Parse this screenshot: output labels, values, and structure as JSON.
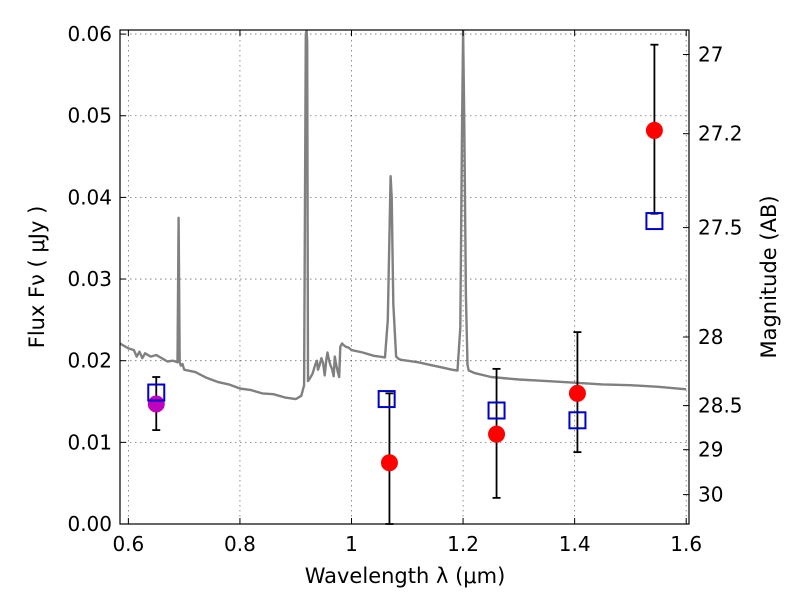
{
  "chart_data": {
    "type": "scatter",
    "xlabel": "Wavelength  λ (μm)",
    "ylabel_left": "Flux  Fν  ( μJy )",
    "ylabel_right": "Magnitude (AB)",
    "xlim": [
      0.585,
      1.605
    ],
    "ylim": [
      0.0,
      0.0605
    ],
    "x_ticks": [
      "0.6",
      "0.8",
      "1",
      "1.2",
      "1.4",
      "1.6"
    ],
    "x_tick_values": [
      0.6,
      0.8,
      1.0,
      1.2,
      1.4,
      1.6
    ],
    "y_ticks": [
      "0.00",
      "0.01",
      "0.02",
      "0.03",
      "0.04",
      "0.05",
      "0.06"
    ],
    "y_tick_values": [
      0.0,
      0.01,
      0.02,
      0.03,
      0.04,
      0.05,
      0.06
    ],
    "right_ticks": [
      {
        "label": "27",
        "flux": 0.0575
      },
      {
        "label": "27.2",
        "flux": 0.0478
      },
      {
        "label": "27.5",
        "flux": 0.0363
      },
      {
        "label": "28",
        "flux": 0.0229
      },
      {
        "label": "28.5",
        "flux": 0.0145
      },
      {
        "label": "29",
        "flux": 0.0091
      },
      {
        "label": "30",
        "flux": 0.0036
      }
    ],
    "grid": true,
    "spectrum": {
      "color": "#808080",
      "x": [
        0.585,
        0.6,
        0.61,
        0.615,
        0.62,
        0.625,
        0.63,
        0.64,
        0.65,
        0.66,
        0.67,
        0.68,
        0.688,
        0.69,
        0.692,
        0.694,
        0.697,
        0.7,
        0.72,
        0.74,
        0.76,
        0.78,
        0.8,
        0.82,
        0.84,
        0.86,
        0.88,
        0.9,
        0.91,
        0.915,
        0.918,
        0.9195,
        0.9205,
        0.922,
        0.925,
        0.93,
        0.935,
        0.938,
        0.94,
        0.943,
        0.946,
        0.949,
        0.952,
        0.955,
        0.957,
        0.959,
        0.962,
        0.965,
        0.968,
        0.97,
        0.972,
        0.975,
        0.978,
        0.98,
        0.983,
        0.986,
        0.99,
        0.995,
        1.0,
        1.02,
        1.04,
        1.06,
        1.065,
        1.07,
        1.072,
        1.075,
        1.08,
        1.085,
        1.09,
        1.1,
        1.12,
        1.14,
        1.16,
        1.18,
        1.19,
        1.195,
        1.198,
        1.2,
        1.202,
        1.205,
        1.208,
        1.21,
        1.22,
        1.25,
        1.3,
        1.35,
        1.4,
        1.45,
        1.5,
        1.55,
        1.6
      ],
      "y": [
        0.0221,
        0.0215,
        0.0213,
        0.0205,
        0.0211,
        0.0203,
        0.0209,
        0.0205,
        0.0207,
        0.0203,
        0.0199,
        0.02,
        0.0198,
        0.0375,
        0.0198,
        0.0194,
        0.0196,
        0.0189,
        0.0186,
        0.0179,
        0.0174,
        0.0171,
        0.0166,
        0.0164,
        0.016,
        0.0159,
        0.0155,
        0.0153,
        0.0157,
        0.017,
        0.06,
        0.0605,
        0.059,
        0.0175,
        0.0178,
        0.0184,
        0.0195,
        0.02,
        0.0189,
        0.0195,
        0.0203,
        0.0197,
        0.0182,
        0.0202,
        0.021,
        0.0203,
        0.0195,
        0.019,
        0.0181,
        0.0205,
        0.0197,
        0.0187,
        0.018,
        0.0217,
        0.0221,
        0.0219,
        0.0217,
        0.0216,
        0.0213,
        0.021,
        0.0206,
        0.0204,
        0.025,
        0.0426,
        0.04,
        0.027,
        0.0205,
        0.0202,
        0.0201,
        0.02,
        0.0198,
        0.0195,
        0.0192,
        0.0189,
        0.0188,
        0.024,
        0.048,
        0.0605,
        0.05,
        0.028,
        0.0195,
        0.0188,
        0.0185,
        0.018,
        0.0177,
        0.0175,
        0.0173,
        0.0171,
        0.017,
        0.0168,
        0.0165
      ]
    },
    "series": [
      {
        "marker": "circle",
        "color": "#ff0000",
        "points": [
          {
            "x": 1.068,
            "y": 0.0075,
            "yerr_low": 0.0075,
            "yerr_high": 0.0085
          },
          {
            "x": 1.26,
            "y": 0.011,
            "yerr_low": 0.0078,
            "yerr_high": 0.008
          },
          {
            "x": 1.405,
            "y": 0.016,
            "yerr_low": 0.0072,
            "yerr_high": 0.0075
          },
          {
            "x": 1.543,
            "y": 0.0482,
            "yerr_low": 0.0102,
            "yerr_high": 0.0105
          }
        ]
      },
      {
        "marker": "circle",
        "color": "#bf00bf",
        "points": [
          {
            "x": 0.65,
            "y": 0.0147,
            "yerr_low": 0.0032,
            "yerr_high": 0.0033
          }
        ]
      },
      {
        "marker": "square-open",
        "color": "#0000cc",
        "points": [
          {
            "x": 0.65,
            "y": 0.0161
          },
          {
            "x": 1.063,
            "y": 0.0153
          },
          {
            "x": 1.26,
            "y": 0.0139
          },
          {
            "x": 1.405,
            "y": 0.0127
          },
          {
            "x": 1.543,
            "y": 0.0371
          }
        ]
      }
    ]
  }
}
